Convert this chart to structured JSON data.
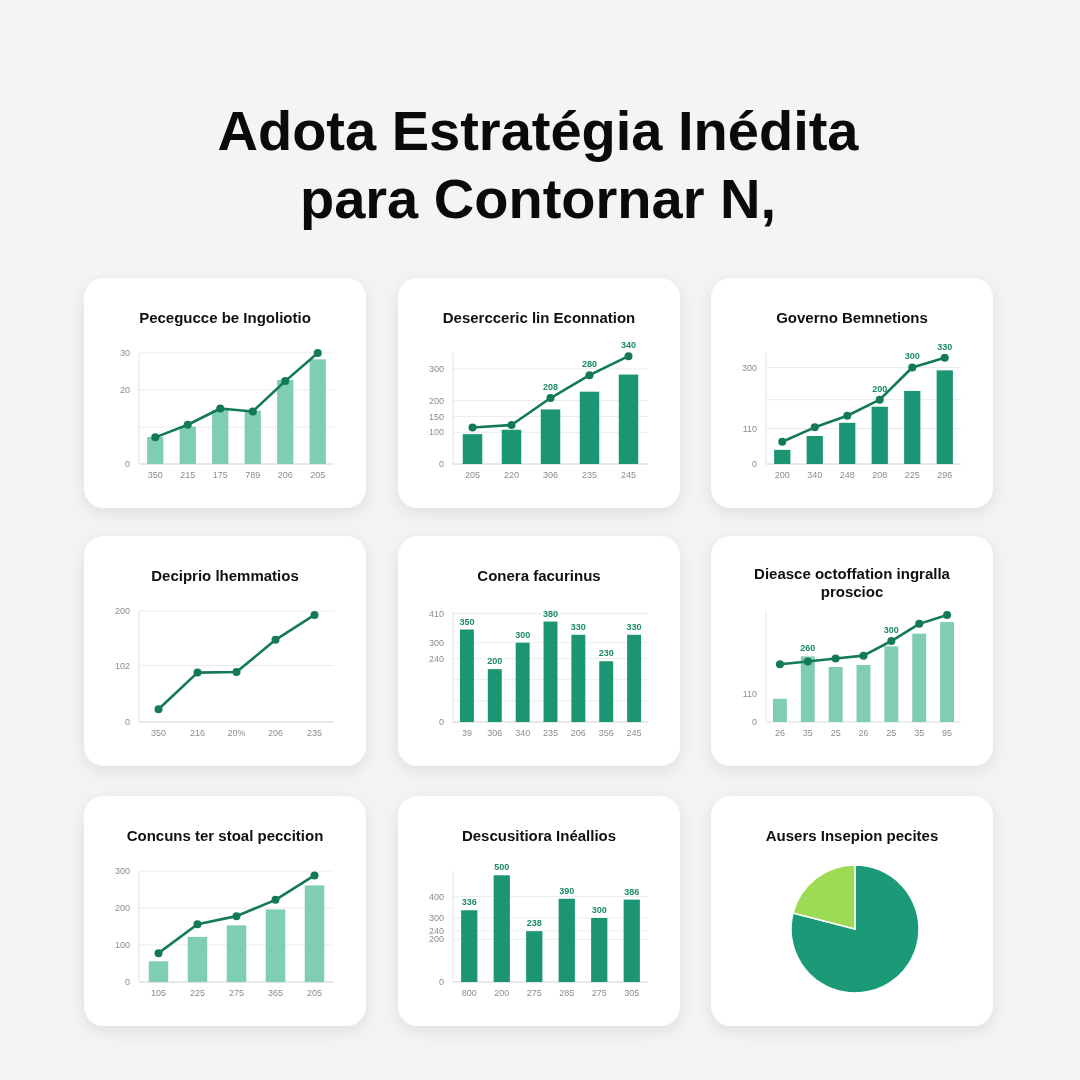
{
  "chart_data": [
    {
      "type": "bar",
      "title": "Pecegucce be Ingoliotio",
      "annotations": [
        "Adota Estratégia Inédita para Contornar N,"
      ],
      "categories": [
        "350",
        "215",
        "175",
        "789",
        "206",
        "205"
      ],
      "series": [
        {
          "type": "bar",
          "color": "#7fcdb5",
          "values": [
            7.3,
            10.1,
            14.6,
            14.4,
            22.7,
            28.3
          ]
        },
        {
          "type": "line",
          "color": "#137a59",
          "values": [
            7.2,
            10.6,
            15.0,
            14.2,
            22.4,
            30.0
          ]
        }
      ],
      "ylim": [
        0,
        30
      ],
      "yticks": [
        0,
        {
          "value": 10,
          "label": null
        },
        20,
        30
      ],
      "grid": "y",
      "marker": "circle"
    },
    {
      "type": "bar",
      "title": "Desercceric lin Econnation",
      "categories": [
        "205",
        "220",
        "306",
        "235",
        "245"
      ],
      "series": [
        {
          "type": "bar",
          "color": "#1b9572",
          "values": [
            94,
            108,
            172,
            228,
            282
          ]
        },
        {
          "type": "line",
          "color": "#137a59",
          "values": [
            115,
            123,
            208,
            280,
            340
          ],
          "value_labels": [
            null,
            null,
            "208",
            "280",
            "340"
          ]
        }
      ],
      "ylim": [
        0,
        350
      ],
      "yticks": [
        0,
        100,
        150,
        200,
        300
      ],
      "grid": "y",
      "marker": "circle"
    },
    {
      "type": "bar",
      "title": "Governo Bemnetions",
      "categories": [
        "200",
        "340",
        "248",
        "208",
        "225",
        "296"
      ],
      "series": [
        {
          "type": "bar",
          "color": "#1b9572",
          "values": [
            44,
            87,
            128,
            178,
            227,
            291
          ]
        },
        {
          "type": "line",
          "color": "#137a59",
          "values": [
            69,
            114,
            150,
            200,
            300,
            330
          ],
          "value_labels": [
            null,
            null,
            null,
            "200",
            "300",
            "330"
          ]
        }
      ],
      "ylim": [
        0,
        345
      ],
      "yticks": [
        0,
        110,
        {
          "value": 200,
          "label": null
        },
        300
      ],
      "grid": "y",
      "marker": "circle"
    },
    {
      "type": "line",
      "title": "Deciprio lhemmatios",
      "categories": [
        "350",
        "216",
        "20%",
        "206",
        "235"
      ],
      "series": [
        {
          "type": "line",
          "color": "#137a59",
          "values": [
            23,
            89,
            90,
            148,
            193
          ]
        }
      ],
      "ylim": [
        0,
        200
      ],
      "yticks": [
        0,
        102,
        200
      ],
      "grid": "y",
      "marker": "circle"
    },
    {
      "type": "bar",
      "title": "Conera facurinus",
      "categories": [
        "39",
        "306",
        "340",
        "235",
        "206",
        "356",
        "245"
      ],
      "series": [
        {
          "type": "bar",
          "color": "#1b9572",
          "values": [
            350,
            200,
            300,
            380,
            330,
            230,
            330
          ],
          "value_labels": [
            "350",
            "200",
            "300",
            "380",
            "330",
            "230",
            "330"
          ]
        }
      ],
      "ylim": [
        0,
        420
      ],
      "yticks": [
        0,
        {
          "value": 80,
          "label": null
        },
        {
          "value": 160,
          "label": null
        },
        240,
        300,
        410
      ],
      "grid": "y"
    },
    {
      "type": "bar",
      "title": "Dieasce octoffation ingralla proscioc",
      "categories": [
        "26",
        "35",
        "25",
        "26",
        "25",
        "35",
        "95"
      ],
      "series": [
        {
          "type": "bar",
          "color": "#7fcdb5",
          "values": [
            92,
            260,
            218,
            226,
            300,
            350,
            396
          ],
          "value_labels": [
            null,
            "260",
            null,
            null,
            "300",
            null,
            null
          ]
        },
        {
          "type": "line",
          "color": "#137a59",
          "values": [
            229,
            240,
            252,
            263,
            321,
            389,
            424
          ]
        }
      ],
      "ylim": [
        0,
        440
      ],
      "yticks": [
        0,
        110
      ],
      "marker": "circle"
    },
    {
      "type": "bar",
      "title": "Concuns ter stoal peccition",
      "categories": [
        "105",
        "225",
        "275",
        "365",
        "205"
      ],
      "series": [
        {
          "type": "bar",
          "color": "#7fcdb5",
          "values": [
            56,
            122,
            153,
            196,
            261
          ]
        },
        {
          "type": "line",
          "color": "#137a59",
          "values": [
            78,
            156,
            178,
            222,
            288
          ]
        }
      ],
      "ylim": [
        0,
        300
      ],
      "yticks": [
        0,
        100,
        200,
        300
      ],
      "grid": "y",
      "marker": "circle"
    },
    {
      "type": "bar",
      "title": "Descusitiora Inéallios",
      "categories": [
        "800",
        "200",
        "275",
        "285",
        "275",
        "305"
      ],
      "series": [
        {
          "type": "bar",
          "color": "#1b9572",
          "values": [
            336,
            500,
            238,
            390,
            300,
            386
          ],
          "value_labels": [
            "336",
            "500",
            "238",
            "390",
            "300",
            "386"
          ]
        }
      ],
      "ylim": [
        0,
        520
      ],
      "yticks": [
        0,
        200,
        240,
        300,
        400
      ],
      "grid": "y"
    },
    {
      "type": "pie",
      "title": "Ausers Insepion pecites",
      "categories": [
        null,
        null
      ],
      "values": [
        79,
        21
      ],
      "colors": [
        "#1a9a76",
        "#9edb55"
      ]
    }
  ]
}
